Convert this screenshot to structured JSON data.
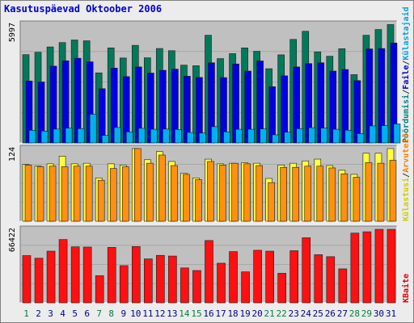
{
  "chart_data": {
    "title": "Kasutuspäevad Oktoober 2006",
    "categories": [
      "1",
      "2",
      "3",
      "4",
      "5",
      "6",
      "7",
      "8",
      "9",
      "10",
      "11",
      "12",
      "13",
      "14",
      "15",
      "16",
      "17",
      "18",
      "19",
      "20",
      "21",
      "22",
      "23",
      "24",
      "25",
      "26",
      "27",
      "28",
      "29",
      "30",
      "31"
    ],
    "weekend_days": [
      "1",
      "7",
      "8",
      "14",
      "15",
      "21",
      "22",
      "28",
      "29"
    ],
    "colors": {
      "background": "#ececec",
      "plot_bg": "#c0c0c0",
      "weekday_label": "#000080",
      "weekend_label": "#008040",
      "grid": "#a8a8a8"
    },
    "panels": [
      {
        "type": "bar",
        "ytick": "5997",
        "ylim": [
          0,
          5997
        ],
        "legend": [
          {
            "text": "Pöördumisi",
            "color": "#008080"
          },
          {
            "text": "/",
            "color": "#333333"
          },
          {
            "text": "Faile",
            "color": "#0000cc"
          },
          {
            "text": "/",
            "color": "#333333"
          },
          {
            "text": "Külastajaid",
            "color": "#00a0e0"
          }
        ],
        "series": [
          {
            "name": "Pöördumisi",
            "color": "#007a5a",
            "values": [
              4460,
              4580,
              4850,
              5070,
              5200,
              5160,
              3540,
              4800,
              4290,
              4930,
              4300,
              4770,
              4660,
              3930,
              3900,
              5440,
              4260,
              4510,
              4800,
              4630,
              3750,
              4450,
              5230,
              5640,
              4600,
              4380,
              4760,
              3450,
              5440,
              5730,
              5980
            ]
          },
          {
            "name": "Faile",
            "color": "#0000e0",
            "values": [
              3130,
              3080,
              3880,
              4150,
              4280,
              4100,
              2740,
              3780,
              3350,
              3840,
              3530,
              3670,
              3730,
              3370,
              3310,
              4050,
              3300,
              3990,
              3630,
              4140,
              2840,
              3390,
              3840,
              4010,
              4050,
              3630,
              3710,
              3150,
              4750,
              4770,
              5050
            ]
          },
          {
            "name": "Külastajaid",
            "color": "#00b0f0",
            "values": [
              640,
              600,
              700,
              750,
              720,
              1450,
              380,
              780,
              560,
              740,
              690,
              700,
              680,
              530,
              500,
              820,
              560,
              690,
              690,
              710,
              410,
              540,
              720,
              770,
              750,
              690,
              640,
              470,
              860,
              870,
              960
            ]
          }
        ]
      },
      {
        "type": "bar",
        "ytick": "124",
        "ylim": [
          0,
          124
        ],
        "legend": [
          {
            "text": "Külastusi",
            "color": "#cccc00"
          },
          {
            "text": "/",
            "color": "#333333"
          },
          {
            "text": "Arvuteid",
            "color": "#ff8000"
          }
        ],
        "series": [
          {
            "name": "Külastusi",
            "color": "#ffff40",
            "values": [
              97,
              94,
              98,
              111,
              98,
              99,
              74,
              98,
              96,
              124,
              105,
              119,
              102,
              82,
              74,
              106,
              98,
              99,
              100,
              99,
              73,
              96,
              99,
              103,
              106,
              95,
              87,
              80,
              116,
              116,
              124
            ]
          },
          {
            "name": "Arvuteid",
            "color": "#ff9010",
            "values": [
              96,
              93,
              94,
              93,
              94,
              94,
              70,
              90,
              93,
              124,
              99,
              113,
              95,
              80,
              71,
              102,
              96,
              99,
              98,
              95,
              66,
              92,
              92,
              94,
              94,
              91,
              81,
              75,
              100,
              99,
              104
            ]
          }
        ]
      },
      {
        "type": "bar",
        "ytick": "66422",
        "ylim": [
          0,
          66422
        ],
        "legend": [
          {
            "text": "KBaite",
            "color": "#e00000"
          }
        ],
        "series": [
          {
            "name": "KBaite",
            "color": "#ff1010",
            "values": [
              42700,
              40300,
              46700,
              57200,
              50600,
              50400,
              24500,
              50100,
              33600,
              50900,
              39700,
              42900,
              42300,
              31500,
              29200,
              56300,
              35800,
              46300,
              28000,
              47500,
              46700,
              26700,
              47100,
              58800,
              43500,
              41700,
              30700,
              63000,
              64200,
              66400,
              66400
            ]
          }
        ]
      }
    ]
  }
}
